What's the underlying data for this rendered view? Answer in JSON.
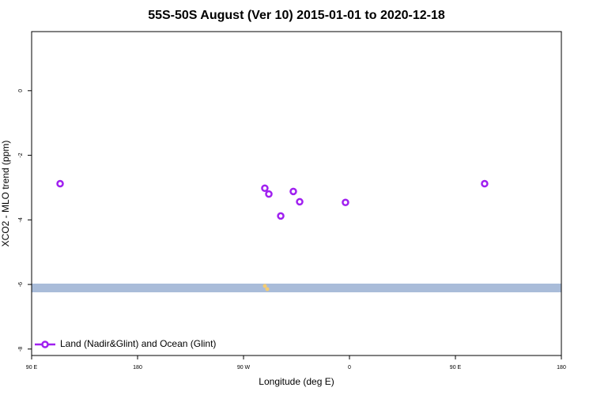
{
  "chart_data": {
    "type": "scatter",
    "title": "55S-50S August (Ver 10)   2015-01-01 to 2020-12-18",
    "x_label": "Longitude (deg E)",
    "y_label": "XCO2 - MLO trend (ppm)",
    "series": [
      {
        "name": "Land (Nadir&Glint) and Ocean (Glint)",
        "color": "#a020f0",
        "x": [
          114.2,
          288.1,
          291.5,
          301.6,
          312.3,
          317.7,
          356.6,
          474.8
        ],
        "values": [
          -2.88,
          -3.02,
          -3.2,
          -3.88,
          -3.12,
          -3.44,
          -3.46,
          -2.88
        ]
      }
    ],
    "xlim": [
      90,
      540
    ],
    "xticks": [
      {
        "value": 90,
        "label": "90 E"
      },
      {
        "value": 180,
        "label": "180"
      },
      {
        "value": 270,
        "label": "90 W"
      },
      {
        "value": 360,
        "label": "0"
      },
      {
        "value": 450,
        "label": "90 E"
      },
      {
        "value": 540,
        "label": "180"
      }
    ],
    "ylim": [
      -8.2,
      1.83
    ],
    "yticks": [
      0,
      -2,
      -4,
      -6,
      -8
    ],
    "legend": "bottom-left"
  }
}
